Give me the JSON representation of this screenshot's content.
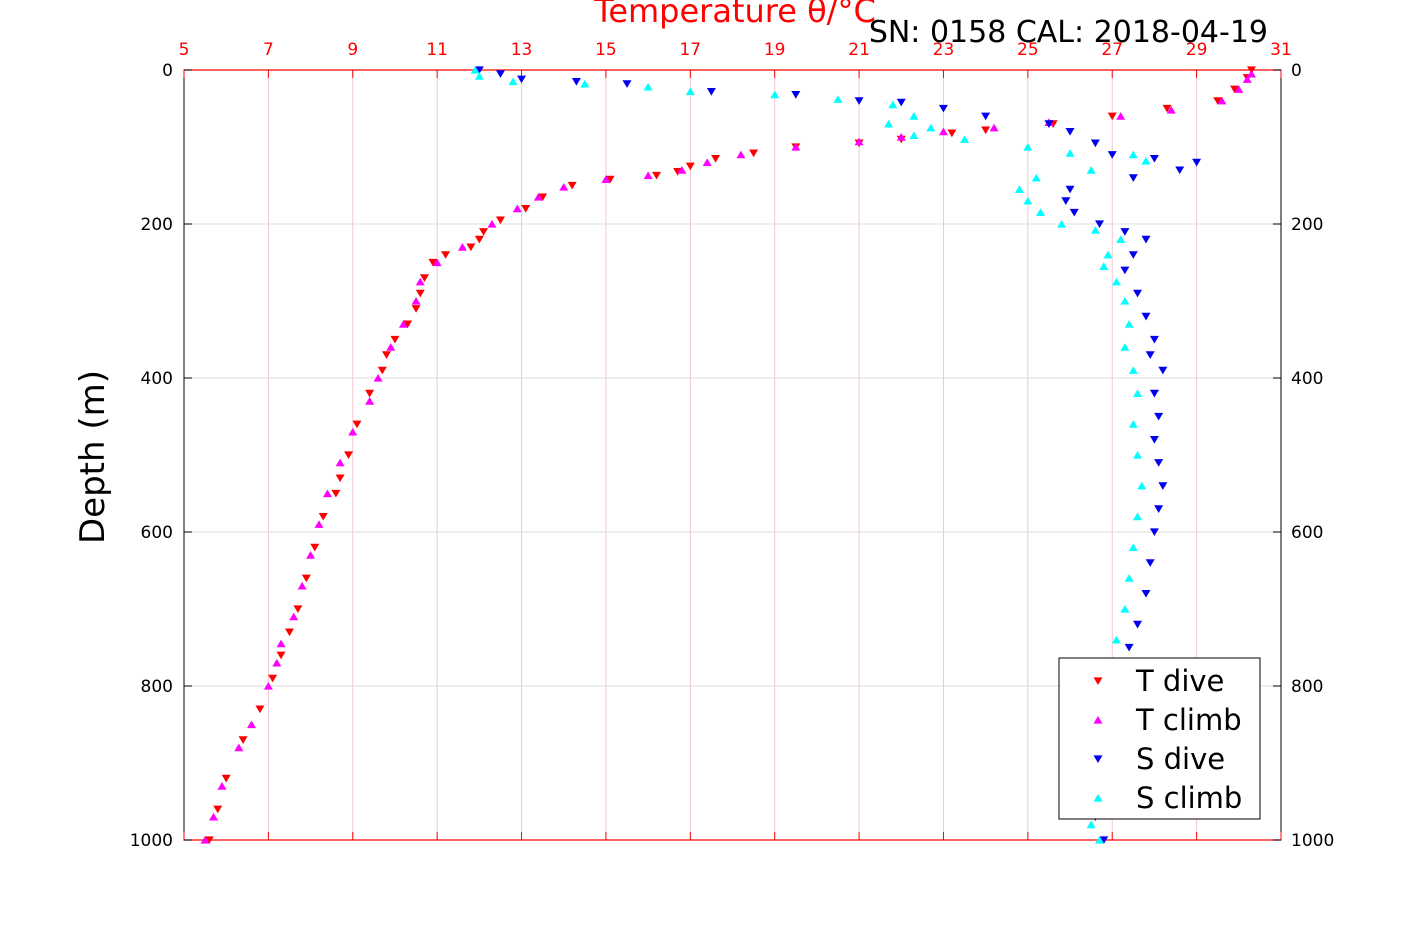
{
  "chart_data": {
    "type": "scatter",
    "title": "Temperature θ/°C",
    "annotation": "SN: 0158  CAL: 2018-04-19",
    "ylabel": "Depth (m)",
    "xlabel": "",
    "xlim": [
      5,
      31
    ],
    "ylim": [
      0,
      1000
    ],
    "y_reversed": true,
    "x_ticks": [
      5,
      7,
      9,
      11,
      13,
      15,
      17,
      19,
      21,
      23,
      25,
      27,
      29,
      31
    ],
    "y_ticks": [
      0,
      200,
      400,
      600,
      800,
      1000
    ],
    "grid": true,
    "legend_position": "bottom-right",
    "colors": {
      "axis_top": "#ff0000",
      "grid_x": "#f2c6d0",
      "grid_y": "#dddddd"
    },
    "series": [
      {
        "name": "T dive",
        "color": "#ff0000",
        "marker": "triangle-down",
        "points": [
          [
            30.3,
            0
          ],
          [
            30.2,
            10
          ],
          [
            29.9,
            25
          ],
          [
            29.5,
            40
          ],
          [
            28.3,
            50
          ],
          [
            27.0,
            60
          ],
          [
            25.6,
            70
          ],
          [
            24.0,
            78
          ],
          [
            23.2,
            82
          ],
          [
            22.0,
            90
          ],
          [
            21.0,
            95
          ],
          [
            19.5,
            100
          ],
          [
            18.5,
            108
          ],
          [
            17.6,
            115
          ],
          [
            17.0,
            125
          ],
          [
            16.7,
            132
          ],
          [
            16.2,
            137
          ],
          [
            15.1,
            142
          ],
          [
            14.2,
            150
          ],
          [
            13.5,
            165
          ],
          [
            13.1,
            180
          ],
          [
            12.5,
            195
          ],
          [
            12.1,
            210
          ],
          [
            12.0,
            220
          ],
          [
            11.8,
            230
          ],
          [
            11.2,
            240
          ],
          [
            10.9,
            250
          ],
          [
            10.7,
            270
          ],
          [
            10.6,
            290
          ],
          [
            10.5,
            310
          ],
          [
            10.3,
            330
          ],
          [
            10.0,
            350
          ],
          [
            9.8,
            370
          ],
          [
            9.7,
            390
          ],
          [
            9.4,
            420
          ],
          [
            9.1,
            460
          ],
          [
            8.9,
            500
          ],
          [
            8.7,
            530
          ],
          [
            8.6,
            550
          ],
          [
            8.3,
            580
          ],
          [
            8.1,
            620
          ],
          [
            7.9,
            660
          ],
          [
            7.7,
            700
          ],
          [
            7.5,
            730
          ],
          [
            7.3,
            760
          ],
          [
            7.1,
            790
          ],
          [
            6.8,
            830
          ],
          [
            6.4,
            870
          ],
          [
            6.0,
            920
          ],
          [
            5.8,
            960
          ],
          [
            5.6,
            1000
          ]
        ]
      },
      {
        "name": "T climb",
        "color": "#ff00ff",
        "marker": "triangle-up",
        "points": [
          [
            30.3,
            5
          ],
          [
            30.2,
            12
          ],
          [
            30.0,
            25
          ],
          [
            29.6,
            40
          ],
          [
            28.4,
            52
          ],
          [
            27.2,
            60
          ],
          [
            25.5,
            68
          ],
          [
            24.2,
            75
          ],
          [
            23.0,
            80
          ],
          [
            22.0,
            87
          ],
          [
            21.0,
            93
          ],
          [
            19.5,
            100
          ],
          [
            18.2,
            110
          ],
          [
            17.4,
            120
          ],
          [
            16.8,
            130
          ],
          [
            16.0,
            137
          ],
          [
            15.0,
            142
          ],
          [
            14.0,
            152
          ],
          [
            13.4,
            165
          ],
          [
            12.9,
            180
          ],
          [
            12.3,
            200
          ],
          [
            11.6,
            230
          ],
          [
            11.0,
            250
          ],
          [
            10.6,
            275
          ],
          [
            10.5,
            300
          ],
          [
            10.2,
            330
          ],
          [
            9.9,
            360
          ],
          [
            9.6,
            400
          ],
          [
            9.4,
            430
          ],
          [
            9.0,
            470
          ],
          [
            8.7,
            510
          ],
          [
            8.4,
            550
          ],
          [
            8.2,
            590
          ],
          [
            8.0,
            630
          ],
          [
            7.8,
            670
          ],
          [
            7.6,
            710
          ],
          [
            7.3,
            745
          ],
          [
            7.2,
            770
          ],
          [
            7.0,
            800
          ],
          [
            6.6,
            850
          ],
          [
            6.3,
            880
          ],
          [
            5.9,
            930
          ],
          [
            5.7,
            970
          ],
          [
            5.5,
            1000
          ]
        ]
      },
      {
        "name": "S dive",
        "color": "#0000ee",
        "marker": "triangle-down",
        "points": [
          [
            12.0,
            0
          ],
          [
            12.5,
            5
          ],
          [
            13.0,
            12
          ],
          [
            14.3,
            15
          ],
          [
            15.5,
            18
          ],
          [
            17.5,
            28
          ],
          [
            19.5,
            32
          ],
          [
            21.0,
            40
          ],
          [
            22.0,
            42
          ],
          [
            23.0,
            50
          ],
          [
            24.0,
            60
          ],
          [
            25.5,
            70
          ],
          [
            26.0,
            80
          ],
          [
            26.6,
            95
          ],
          [
            27.0,
            110
          ],
          [
            28.0,
            115
          ],
          [
            29.0,
            120
          ],
          [
            28.6,
            130
          ],
          [
            27.5,
            140
          ],
          [
            26.0,
            155
          ],
          [
            25.9,
            170
          ],
          [
            26.1,
            185
          ],
          [
            26.7,
            200
          ],
          [
            27.3,
            210
          ],
          [
            27.8,
            220
          ],
          [
            27.5,
            240
          ],
          [
            27.3,
            260
          ],
          [
            27.6,
            290
          ],
          [
            27.8,
            320
          ],
          [
            28.0,
            350
          ],
          [
            27.9,
            370
          ],
          [
            28.2,
            390
          ],
          [
            28.0,
            420
          ],
          [
            28.1,
            450
          ],
          [
            28.0,
            480
          ],
          [
            28.1,
            510
          ],
          [
            28.2,
            540
          ],
          [
            28.1,
            570
          ],
          [
            28.0,
            600
          ],
          [
            27.9,
            640
          ],
          [
            27.8,
            680
          ],
          [
            27.6,
            720
          ],
          [
            27.4,
            750
          ],
          [
            27.2,
            780
          ],
          [
            27.0,
            820
          ],
          [
            26.9,
            860
          ],
          [
            26.8,
            900
          ],
          [
            26.7,
            940
          ],
          [
            26.6,
            970
          ],
          [
            26.8,
            1000
          ]
        ]
      },
      {
        "name": "S climb",
        "color": "#00ffff",
        "marker": "triangle-up",
        "points": [
          [
            11.9,
            0
          ],
          [
            12.0,
            8
          ],
          [
            12.8,
            15
          ],
          [
            14.5,
            18
          ],
          [
            16.0,
            22
          ],
          [
            17.0,
            28
          ],
          [
            19.0,
            32
          ],
          [
            20.5,
            38
          ],
          [
            21.8,
            45
          ],
          [
            22.3,
            60
          ],
          [
            21.7,
            70
          ],
          [
            22.7,
            75
          ],
          [
            22.3,
            85
          ],
          [
            23.5,
            90
          ],
          [
            25.0,
            100
          ],
          [
            26.0,
            108
          ],
          [
            27.5,
            110
          ],
          [
            27.8,
            118
          ],
          [
            26.5,
            130
          ],
          [
            25.2,
            140
          ],
          [
            24.8,
            155
          ],
          [
            25.0,
            170
          ],
          [
            25.3,
            185
          ],
          [
            25.8,
            200
          ],
          [
            26.6,
            208
          ],
          [
            27.2,
            220
          ],
          [
            26.9,
            240
          ],
          [
            26.8,
            255
          ],
          [
            27.1,
            275
          ],
          [
            27.3,
            300
          ],
          [
            27.4,
            330
          ],
          [
            27.3,
            360
          ],
          [
            27.5,
            390
          ],
          [
            27.6,
            420
          ],
          [
            27.5,
            460
          ],
          [
            27.6,
            500
          ],
          [
            27.7,
            540
          ],
          [
            27.6,
            580
          ],
          [
            27.5,
            620
          ],
          [
            27.4,
            660
          ],
          [
            27.3,
            700
          ],
          [
            27.1,
            740
          ],
          [
            27.0,
            770
          ],
          [
            26.9,
            800
          ],
          [
            26.8,
            850
          ],
          [
            26.7,
            900
          ],
          [
            26.6,
            950
          ],
          [
            26.5,
            980
          ],
          [
            26.7,
            1000
          ]
        ]
      }
    ]
  }
}
